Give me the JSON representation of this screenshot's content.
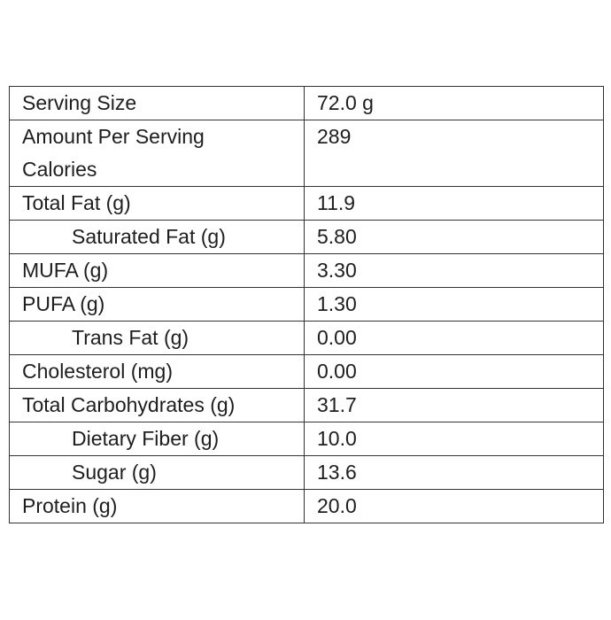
{
  "table": {
    "rows": [
      {
        "label": [
          "Serving Size"
        ],
        "value": "72.0 g"
      },
      {
        "label": [
          "Amount Per Serving",
          "Calories"
        ],
        "value": "289"
      },
      {
        "label": [
          "Total Fat (g)"
        ],
        "value": "11.9"
      },
      {
        "label": [
          "Saturated Fat (g)"
        ],
        "value": "5.80"
      },
      {
        "label": [
          "MUFA (g)"
        ],
        "value": "3.30"
      },
      {
        "label": [
          "PUFA (g)"
        ],
        "value": "1.30"
      },
      {
        "label": [
          "Trans Fat (g)"
        ],
        "value": "0.00"
      },
      {
        "label": [
          "Cholesterol (mg)"
        ],
        "value": "0.00"
      },
      {
        "label": [
          "Total Carbohydrates (g)"
        ],
        "value": "31.7"
      },
      {
        "label": [
          "Dietary Fiber (g)"
        ],
        "value": "10.0"
      },
      {
        "label": [
          "Sugar (g)"
        ],
        "value": "13.6"
      },
      {
        "label": [
          "Protein (g)"
        ],
        "value": "20.0"
      }
    ]
  }
}
